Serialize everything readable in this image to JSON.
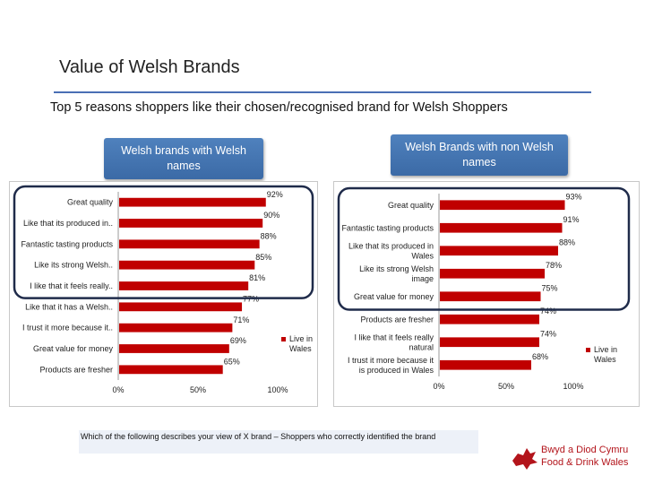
{
  "page": {
    "title": "Value of Welsh Brands",
    "subtitle": "Top 5 reasons shoppers like their chosen/recognised brand for Welsh Shoppers",
    "left_header": "Welsh brands with Welsh names",
    "right_header": "Welsh Brands with non Welsh names",
    "footnote": "Which of the following describes your view of X brand – Shoppers who correctly identified the brand",
    "logo_line1": "Bwyd a Diod Cymru",
    "logo_line2": "Food & Drink Wales",
    "colors": {
      "bar": "#c00000",
      "header": "#4f81bd",
      "highlight": "#1f2b4a",
      "logo": "#b3141b"
    }
  },
  "chart_data": [
    {
      "type": "bar",
      "orientation": "horizontal",
      "categories": [
        "Great quality",
        "Like that its  produced  in..",
        "Fantastic tasting products",
        "Like its strong Welsh..",
        "I like that it feels really..",
        "Like that it has a Welsh..",
        "I trust it more because it..",
        "Great value for money",
        "Products are fresher"
      ],
      "series": [
        {
          "name": "Live in Wales",
          "values": [
            92,
            90,
            88,
            85,
            81,
            77,
            71,
            69,
            65
          ]
        }
      ],
      "data_labels": [
        "92%",
        "90%",
        "88%",
        "85%",
        "81%",
        "77%",
        "71%",
        "69%",
        "65%"
      ],
      "xticks": [
        "0%",
        "50%",
        "100%"
      ],
      "xlim": [
        0,
        100
      ],
      "highlight_top_n": 5,
      "legend": "right"
    },
    {
      "type": "bar",
      "orientation": "horizontal",
      "categories": [
        "Great quality",
        "Fantastic tasting products",
        "Like that its  produced  in Wales",
        "Like its strong Welsh image",
        "Great value for money",
        "Products are fresher",
        "I like that it feels really natural",
        "I trust it more because it is produced in Wales"
      ],
      "series": [
        {
          "name": "Live in Wales",
          "values": [
            93,
            91,
            88,
            78,
            75,
            74,
            74,
            68
          ]
        }
      ],
      "data_labels": [
        "93%",
        "91%",
        "88%",
        "78%",
        "75%",
        "74%",
        "74%",
        "68%"
      ],
      "xticks": [
        "0%",
        "50%",
        "100%"
      ],
      "xlim": [
        0,
        100
      ],
      "highlight_top_n": 5,
      "legend": "right"
    }
  ]
}
